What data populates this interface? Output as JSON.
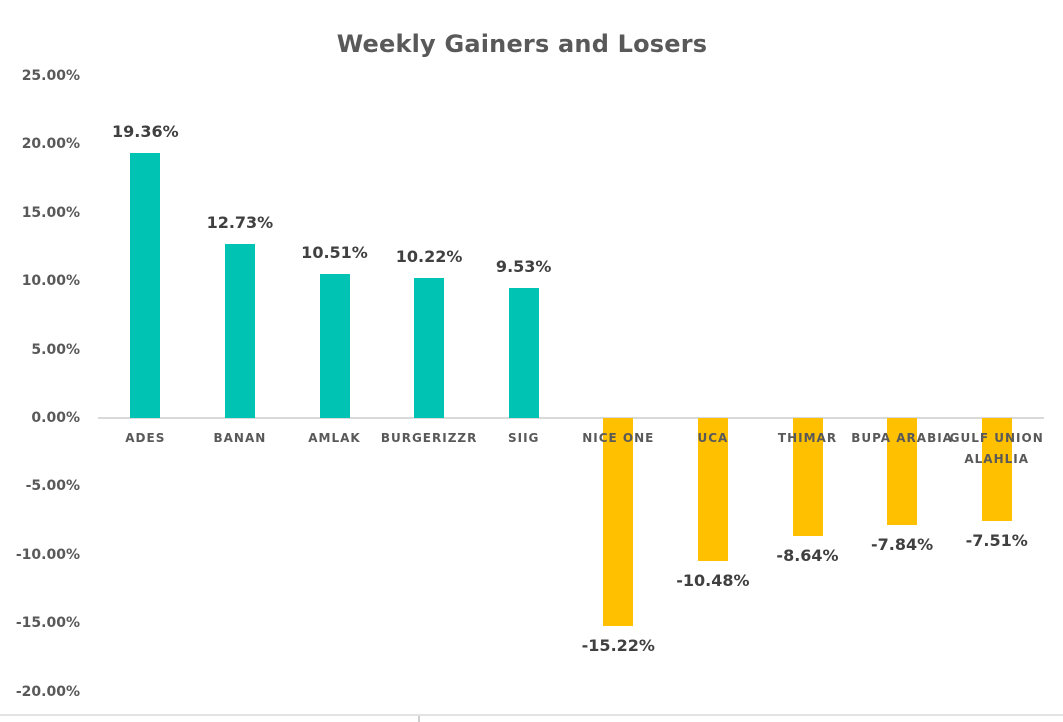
{
  "chart_data": {
    "type": "bar",
    "title": "Weekly Gainers and Losers",
    "categories": [
      "ADES",
      "BANAN",
      "AMLAK",
      "BURGERIZZR",
      "SIIG",
      "NICE ONE",
      "UCA",
      "THIMAR",
      "BUPA ARABIA",
      "GULF UNION ALAHLIA"
    ],
    "values": [
      19.36,
      12.73,
      10.51,
      10.22,
      9.53,
      -15.22,
      -10.48,
      -8.64,
      -7.84,
      -7.51
    ],
    "data_labels": [
      "19.36%",
      "12.73%",
      "10.51%",
      "10.22%",
      "9.53%",
      "-15.22%",
      "-10.48%",
      "-8.64%",
      "-7.84%",
      "-7.51%"
    ],
    "xlabel": "",
    "ylabel": "",
    "ylim": [
      -20,
      25
    ],
    "y_ticks": [
      25,
      20,
      15,
      10,
      5,
      0,
      -5,
      -10,
      -15,
      -20
    ],
    "y_tick_labels": [
      "25.00%",
      "20.00%",
      "15.00%",
      "10.00%",
      "5.00%",
      "0.00%",
      "-5.00%",
      "-10.00%",
      "-15.00%",
      "-20.00%"
    ],
    "grid": false,
    "legend": false,
    "colors": {
      "positive": "#00C3B3",
      "negative": "#FFC000",
      "title_text": "#595959",
      "tick_text": "#595959",
      "data_label_text": "#404040",
      "category_text": "#595959",
      "axis_line": "#D9D9D9"
    }
  }
}
